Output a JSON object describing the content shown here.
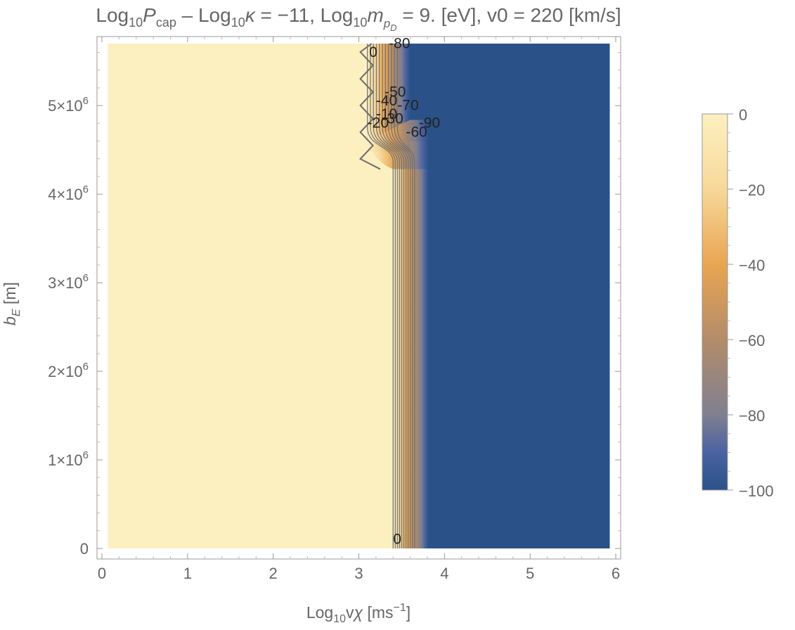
{
  "chart_data": {
    "type": "heatmap",
    "title_parts": {
      "p1": "Log",
      "p1_sub": "10",
      "p2": "P",
      "p2_sub": "cap",
      "p3": " – Log",
      "p3_sub": "10",
      "p4": "κ",
      "p5": " = −11, Log",
      "p5_sub": "10",
      "p6": "m",
      "p6_sub": "p",
      "p6_subsub": "D",
      "p7": " = 9. [eV], v0 = 220 [km/s]"
    },
    "xlabel_parts": {
      "a": "Log",
      "a_sub": "10",
      "b": "v",
      "c": "χ",
      "d": " [ms",
      "d_sup": "−1",
      "e": "]"
    },
    "ylabel_parts": {
      "a": "b",
      "a_sub": "E",
      "b": " [m]"
    },
    "xlim": [
      0,
      6
    ],
    "ylim": [
      0,
      5700000
    ],
    "x_ticks": [
      {
        "value": 0,
        "label": "0"
      },
      {
        "value": 1,
        "label": "1"
      },
      {
        "value": 2,
        "label": "2"
      },
      {
        "value": 3,
        "label": "3"
      },
      {
        "value": 4,
        "label": "4"
      },
      {
        "value": 5,
        "label": "5"
      },
      {
        "value": 6,
        "label": "6"
      }
    ],
    "y_ticks": [
      {
        "value": 0,
        "mant": "0",
        "exp": ""
      },
      {
        "value": 1000000,
        "mant": "1×10",
        "exp": "6"
      },
      {
        "value": 2000000,
        "mant": "2×10",
        "exp": "6"
      },
      {
        "value": 3000000,
        "mant": "3×10",
        "exp": "6"
      },
      {
        "value": 4000000,
        "mant": "4×10",
        "exp": "6"
      },
      {
        "value": 5000000,
        "mant": "5×10",
        "exp": "6"
      }
    ],
    "data_extent": {
      "x": [
        0.07,
        5.93
      ],
      "y": [
        0,
        5700000
      ]
    },
    "regions": {
      "low_x_value": 0,
      "high_x_value": -100,
      "transition_x_lower_y": [
        3.4,
        3.65
      ],
      "transition_x_upper_y": [
        3.1,
        3.45
      ],
      "transition_y": 4600000
    },
    "contour_labels": [
      {
        "text": "-80",
        "x": 3.35,
        "y": 5650000
      },
      {
        "text": "0",
        "x": 3.12,
        "y": 5550000
      },
      {
        "text": "-50",
        "x": 3.3,
        "y": 5100000
      },
      {
        "text": "-40",
        "x": 3.2,
        "y": 5000000
      },
      {
        "text": "-70",
        "x": 3.45,
        "y": 4950000
      },
      {
        "text": "-10",
        "x": 3.2,
        "y": 4850000
      },
      {
        "text": "-30",
        "x": 3.27,
        "y": 4800000
      },
      {
        "text": "-90",
        "x": 3.7,
        "y": 4750000
      },
      {
        "text": "-20",
        "x": 3.1,
        "y": 4750000
      },
      {
        "text": "-60",
        "x": 3.55,
        "y": 4650000
      },
      {
        "text": "0",
        "x": 3.4,
        "y": 50000
      }
    ],
    "colorbar": {
      "range": [
        -100,
        0
      ],
      "ticks": [
        {
          "value": 0,
          "label": "0"
        },
        {
          "value": -20,
          "label": "−20"
        },
        {
          "value": -40,
          "label": "−40"
        },
        {
          "value": -60,
          "label": "−60"
        },
        {
          "value": -80,
          "label": "−80"
        },
        {
          "value": -100,
          "label": "−100"
        }
      ],
      "stops": [
        {
          "value": 0,
          "color": "#fdf0c0"
        },
        {
          "value": -20,
          "color": "#f7d89a"
        },
        {
          "value": -40,
          "color": "#e9a552"
        },
        {
          "value": -60,
          "color": "#b38c6a"
        },
        {
          "value": -80,
          "color": "#7f7f90"
        },
        {
          "value": -90,
          "color": "#4b62a2"
        },
        {
          "value": -100,
          "color": "#2a5288"
        }
      ]
    }
  }
}
